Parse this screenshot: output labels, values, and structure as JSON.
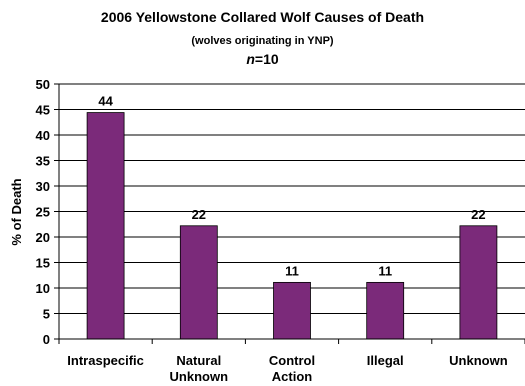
{
  "chart_data": {
    "type": "bar",
    "title": "2006 Yellowstone Collared Wolf Causes of Death",
    "subtitle": "(wolves originating in YNP)",
    "sample_size": {
      "prefix": "n",
      "text": "=10"
    },
    "ylabel": "% of Death",
    "xlabel": "",
    "ylim": [
      0,
      50
    ],
    "yticks": [
      0,
      5,
      10,
      15,
      20,
      25,
      30,
      35,
      40,
      45,
      50
    ],
    "categories": [
      [
        "Intraspecific"
      ],
      [
        "Natural",
        "Unknown"
      ],
      [
        "Control",
        "Action"
      ],
      [
        "Illegal"
      ],
      [
        "Unknown"
      ]
    ],
    "values": [
      44.4,
      22.2,
      11.1,
      11.1,
      22.2
    ],
    "data_labels": [
      "44",
      "22",
      "11",
      "11",
      "22"
    ],
    "bar_color": "#7b2a7a",
    "grid": true,
    "legend": "none"
  }
}
